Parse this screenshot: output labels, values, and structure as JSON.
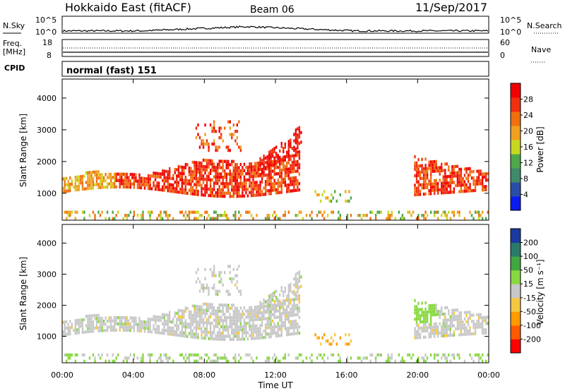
{
  "header": {
    "title": "Hokkaido East (fitACF)",
    "beam": "Beam 06",
    "date": "11/Sep/2017"
  },
  "strip_labels": {
    "nsky": "N.Sky",
    "nsearch": "N.Search",
    "freq_line1": "Freq.",
    "freq_line2": "[MHz]",
    "nave": "Nave",
    "cpid": "CPID",
    "cpid_value": "normal (fast) 151"
  },
  "strip_ticks": {
    "noise_left": [
      "10^5",
      "10^0"
    ],
    "noise_right": [
      "10^5",
      "10^0"
    ],
    "freq_left": [
      "18",
      "8"
    ],
    "nave_right": [
      "60",
      "0"
    ]
  },
  "colors": {
    "power": [
      "#0a1cf0",
      "#2a4ea8",
      "#3f8a6a",
      "#4ea84a",
      "#c8d820",
      "#f0a020",
      "#f07010",
      "#f03010",
      "#f00000"
    ],
    "velocity": [
      "#ff0000",
      "#ff5a00",
      "#ff9a00",
      "#f5c842",
      "#c8c8c8",
      "#88d840",
      "#40a840",
      "#2a7a6a",
      "#1a3aa0"
    ]
  },
  "chart_data": [
    {
      "type": "heatmap",
      "name_label": "Power [dB]",
      "ylabel": "Slant Range [km]",
      "xlabel": "",
      "ylim": [
        150,
        4600
      ],
      "xlim": [
        0,
        24
      ],
      "yticks": [
        "1000",
        "2000",
        "3000",
        "4000"
      ],
      "xticks": [
        "00:00",
        "04:00",
        "08:00",
        "12:00",
        "16:00",
        "20:00",
        "00:00"
      ],
      "colorbar_ticks": [
        "28",
        "24",
        "20",
        "16",
        "12",
        "8",
        "4"
      ],
      "colorbar_range": [
        0,
        30
      ]
    },
    {
      "type": "heatmap",
      "name_label": "Velocity [m s⁻¹]",
      "ylabel": "Slant Range [km]",
      "xlabel": "Time UT",
      "ylim": [
        150,
        4600
      ],
      "xlim": [
        0,
        24
      ],
      "yticks": [
        "1000",
        "2000",
        "3000",
        "4000"
      ],
      "xticks": [
        "00:00",
        "04:00",
        "08:00",
        "12:00",
        "16:00",
        "20:00",
        "00:00"
      ],
      "colorbar_ticks": [
        "200",
        "100",
        "50",
        "15",
        "-15",
        "-50",
        "-100",
        "-200"
      ]
    }
  ]
}
